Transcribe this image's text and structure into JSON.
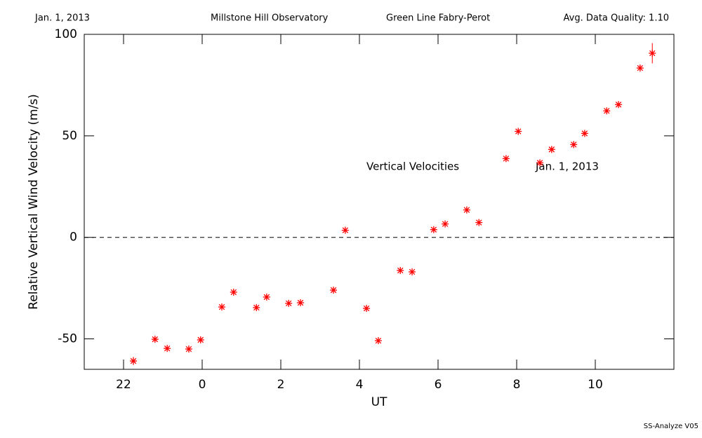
{
  "header": {
    "date": "Jan. 1, 2013",
    "observatory": "Millstone Hill Observatory",
    "instrument": "Green Line Fabry-Perot",
    "quality": "Avg. Data Quality: 1.10"
  },
  "footer": "SS-Analyze V05",
  "chart_data": {
    "type": "scatter",
    "xlabel": "UT",
    "ylabel": "Relative Vertical Wind Velocity (m/s)",
    "annotations": [
      "Vertical Velocities",
      "Jan. 1, 2013"
    ],
    "color": "#ff0000",
    "zero_line": true,
    "xlim": [
      -3,
      12
    ],
    "ylim": [
      -65,
      100
    ],
    "xticks": [
      {
        "value": -2,
        "label": "22"
      },
      0,
      2,
      4,
      6,
      8,
      10
    ],
    "yticks": [
      -50,
      0,
      50,
      100
    ],
    "x": [
      -1.75,
      -1.2,
      -0.89,
      -0.34,
      -0.04,
      0.5,
      0.8,
      1.38,
      1.64,
      2.2,
      2.5,
      3.34,
      3.64,
      4.18,
      4.48,
      5.04,
      5.34,
      5.89,
      6.18,
      6.73,
      7.04,
      7.73,
      8.04,
      8.59,
      8.89,
      9.45,
      9.73,
      10.29,
      10.59,
      11.14,
      11.45
    ],
    "values": [
      -60.9,
      -50.2,
      -54.7,
      -55,
      -50.5,
      -34.3,
      -27,
      -34.6,
      -29.4,
      -32.5,
      -32.2,
      -26,
      3.5,
      -35,
      -50.9,
      -16.3,
      -17,
      3.8,
      6.6,
      13.5,
      7.3,
      38.8,
      52.2,
      36.7,
      43.3,
      45.7,
      51.2,
      62.3,
      65.4,
      83.4,
      90.7
    ],
    "errors": [
      2,
      1,
      1,
      1,
      1,
      1,
      1,
      1,
      1,
      1,
      1,
      1,
      1,
      1,
      1,
      1,
      1,
      1,
      1,
      1,
      1,
      1,
      1,
      1,
      1,
      1,
      1,
      1,
      1,
      1.5,
      5
    ]
  }
}
